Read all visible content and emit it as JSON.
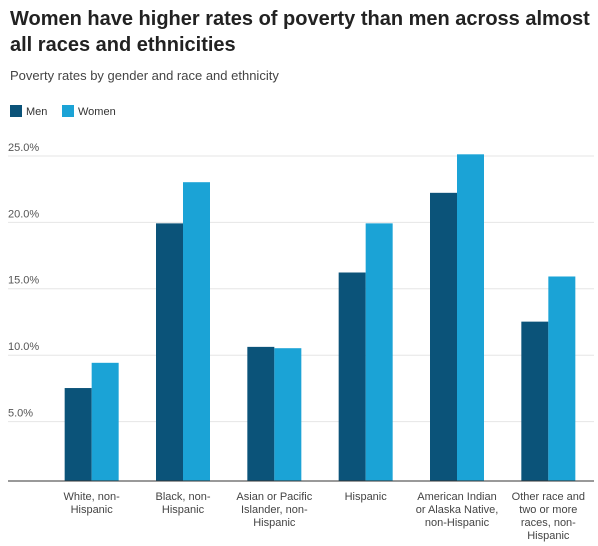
{
  "chart_data": {
    "type": "bar",
    "title": "Women have higher rates of poverty than men across almost all races and ethnicities",
    "subtitle": "Poverty rates by gender and race and ethnicity",
    "categories": [
      "White, non-Hispanic",
      "Black, non-Hispanic",
      "Asian or Pacific Islander, non-Hispanic",
      "Hispanic",
      "American Indian or Alaska Native, non-Hispanic",
      "Other race and two or more races, non-Hispanic"
    ],
    "series": [
      {
        "name": "Men",
        "color": "#0b5379",
        "values": [
          7.0,
          19.4,
          10.1,
          15.7,
          21.7,
          12.0
        ]
      },
      {
        "name": "Women",
        "color": "#1ba3d6",
        "values": [
          8.9,
          22.5,
          10.0,
          19.4,
          24.6,
          15.4
        ]
      }
    ],
    "ylim": [
      0,
      25
    ],
    "yticks": [
      {
        "value": 5,
        "label": "5.0%"
      },
      {
        "value": 10,
        "label": "10.0%"
      },
      {
        "value": 15,
        "label": "15.0%"
      },
      {
        "value": 20,
        "label": "20.0%"
      },
      {
        "value": 25,
        "label": "25.0%"
      }
    ],
    "grid": true,
    "legend": "top-left"
  }
}
